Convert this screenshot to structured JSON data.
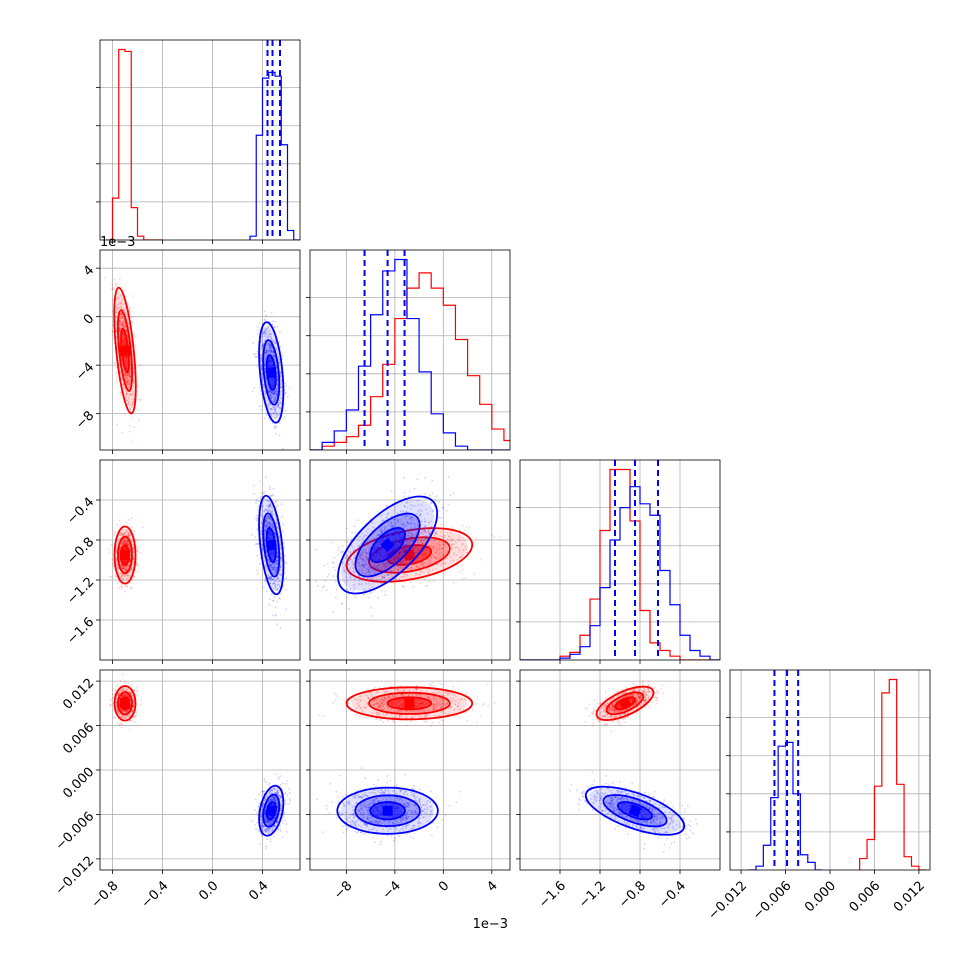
{
  "chart_data": {
    "type": "corner",
    "n_params": 4,
    "series": [
      {
        "name": "",
        "color": "#ff0000"
      },
      {
        "name": "",
        "color": "#0000ff"
      }
    ],
    "params": [
      {
        "range": [
          -0.9,
          0.7
        ],
        "ticks": [
          -0.8,
          -0.4,
          0.0,
          0.4
        ],
        "tick_labels": [
          "−0.8",
          "−0.4",
          "0.0",
          "0.4"
        ],
        "offset": ""
      },
      {
        "range": [
          -11.0,
          5.5
        ],
        "ticks": [
          -8,
          -4,
          0,
          4
        ],
        "tick_labels": [
          "−8",
          "−4",
          "0",
          "4"
        ],
        "offset": "1e−3"
      },
      {
        "range": [
          -2.0,
          0.0
        ],
        "ticks": [
          -1.6,
          -1.2,
          -0.8,
          -0.4
        ],
        "tick_labels": [
          "−1.6",
          "−1.2",
          "−0.8",
          "−0.4"
        ],
        "offset": ""
      },
      {
        "range": [
          -0.0135,
          0.0135
        ],
        "ticks": [
          -0.012,
          -0.006,
          0.0,
          0.006,
          0.012
        ],
        "tick_labels": [
          "−0.012",
          "−0.006",
          "0.000",
          "0.006",
          "0.012"
        ],
        "offset": ""
      }
    ],
    "histograms": [
      {
        "ymax": 1.05,
        "red": {
          "edges": [
            -0.85,
            -0.8,
            -0.75,
            -0.7,
            -0.65,
            -0.6,
            -0.55,
            -0.5,
            -0.45,
            -0.4
          ],
          "counts": [
            0.0,
            0.22,
            1.0,
            0.99,
            0.17,
            0.02,
            0.0,
            0.0,
            0.0
          ]
        },
        "blue": {
          "edges": [
            0.3,
            0.35,
            0.4,
            0.45,
            0.5,
            0.55,
            0.6,
            0.65,
            0.7
          ],
          "counts": [
            0.02,
            0.55,
            0.85,
            0.88,
            0.86,
            0.5,
            0.05,
            0.0
          ]
        },
        "quantiles": [
          0.44,
          0.48,
          0.54
        ]
      },
      {
        "ymax": 1.05,
        "red": {
          "edges": [
            -11,
            -10,
            -9,
            -8,
            -7,
            -6,
            -5,
            -4,
            -3,
            -2,
            -1,
            0,
            1,
            2,
            3,
            4,
            5,
            6
          ],
          "counts": [
            0.0,
            0.02,
            0.04,
            0.07,
            0.13,
            0.28,
            0.45,
            0.69,
            0.85,
            0.93,
            0.85,
            0.76,
            0.58,
            0.39,
            0.24,
            0.11,
            0.05
          ]
        },
        "blue": {
          "edges": [
            -11,
            -10,
            -9,
            -8,
            -7,
            -6,
            -5,
            -4,
            -3,
            -2,
            -1,
            0,
            1,
            2,
            3,
            4,
            5,
            6
          ],
          "counts": [
            0.0,
            0.04,
            0.1,
            0.21,
            0.44,
            0.71,
            0.94,
            1.0,
            0.69,
            0.41,
            0.19,
            0.09,
            0.02,
            0.0,
            0.0,
            0.0,
            0.0
          ]
        },
        "quantiles": [
          -6.5,
          -4.6,
          -3.2
        ]
      },
      {
        "ymax": 1.05,
        "red": {
          "edges": [
            -2.0,
            -1.9,
            -1.8,
            -1.7,
            -1.6,
            -1.5,
            -1.4,
            -1.3,
            -1.2,
            -1.1,
            -1.0,
            -0.9,
            -0.8,
            -0.7,
            -0.6,
            -0.5,
            -0.4,
            -0.3,
            -0.2,
            -0.1,
            0.0
          ],
          "counts": [
            0.0,
            0.0,
            0.0,
            0.0,
            0.02,
            0.04,
            0.13,
            0.32,
            0.68,
            1.0,
            1.0,
            0.73,
            0.26,
            0.09,
            0.05,
            0.02,
            0.0,
            0.0,
            0.0,
            0.0
          ]
        },
        "blue": {
          "edges": [
            -2.0,
            -1.9,
            -1.8,
            -1.7,
            -1.6,
            -1.5,
            -1.4,
            -1.3,
            -1.2,
            -1.1,
            -1.0,
            -0.9,
            -0.8,
            -0.7,
            -0.6,
            -0.5,
            -0.4,
            -0.3,
            -0.2,
            -0.1,
            0.0
          ],
          "counts": [
            0.0,
            0.0,
            0.0,
            0.0,
            0.01,
            0.03,
            0.07,
            0.18,
            0.38,
            0.63,
            0.8,
            0.91,
            0.82,
            0.76,
            0.47,
            0.29,
            0.13,
            0.05,
            0.02,
            0.0
          ]
        },
        "quantiles": [
          -1.05,
          -0.85,
          -0.62
        ]
      },
      {
        "ymax": 1.05,
        "red": {
          "edges": [
            0.004,
            0.005,
            0.006,
            0.007,
            0.008,
            0.009,
            0.01,
            0.011,
            0.012,
            0.013
          ],
          "counts": [
            0.06,
            0.16,
            0.44,
            0.93,
            1.0,
            0.45,
            0.07,
            0.02,
            0.0
          ]
        },
        "blue": {
          "edges": [
            -0.011,
            -0.01,
            -0.009,
            -0.008,
            -0.007,
            -0.006,
            -0.005,
            -0.004,
            -0.003,
            -0.002,
            -0.001
          ],
          "counts": [
            0.0,
            0.02,
            0.13,
            0.38,
            0.65,
            0.67,
            0.4,
            0.08,
            0.04,
            0.0
          ]
        },
        "quantiles": [
          -0.0075,
          -0.0058,
          -0.0043
        ]
      }
    ],
    "clusters": {
      "red": [
        {
          "mean": [
            -0.7,
            -2.8,
            -0.95,
            0.009
          ],
          "sd": [
            0.035,
            2.0,
            0.11,
            0.0009
          ]
        },
        {
          "mean": [
            -0.7,
            -2.8,
            -0.95,
            0.009
          ],
          "sd": [
            0.035,
            2.0,
            0.11,
            0.0009
          ]
        }
      ],
      "blue": [
        {
          "mean": [
            0.47,
            -4.6,
            -0.85,
            -0.0055
          ],
          "sd": [
            0.04,
            1.6,
            0.19,
            0.0013
          ]
        }
      ]
    },
    "correlations": {
      "red": {
        "0-1": -0.55,
        "0-2": 0.0,
        "0-3": 0.0,
        "1-2": 0.35,
        "1-3": 0.0,
        "2-3": 0.6
      },
      "blue": {
        "0-1": -0.35,
        "0-2": -0.4,
        "0-3": 0.3,
        "1-2": 0.6,
        "1-3": 0.0,
        "2-3": -0.6
      }
    },
    "contour_levels_sigma": [
      0.9,
      1.6,
      2.4
    ],
    "grid": true
  }
}
